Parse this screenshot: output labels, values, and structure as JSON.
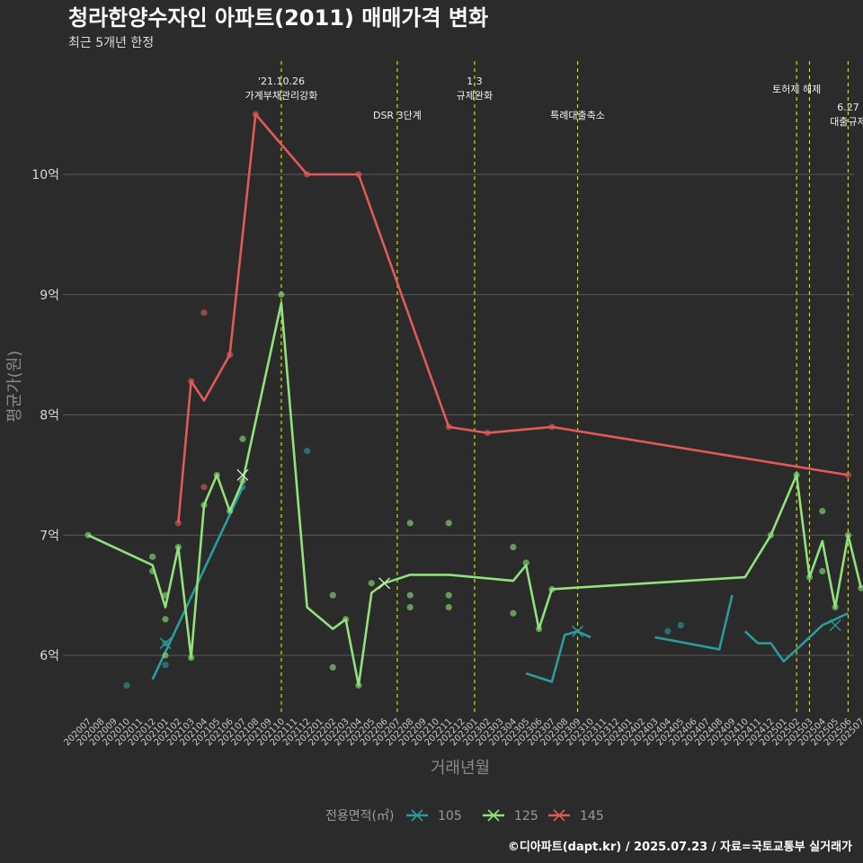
{
  "chart_data": {
    "type": "line",
    "title": "청라한양수자인 아파트(2011) 매매가격 변화",
    "subtitle": "최근 5개년 한정",
    "xlabel": "거래년월",
    "ylabel": "평균가(원)",
    "caption": "©디아파트(dapt.kr) / 2025.07.23 / 자료=국토교통부 실거래가",
    "legend_title": "전용면적(㎡)",
    "legend_position": "bottom",
    "grid": true,
    "ylim": [
      5.4,
      10.5
    ],
    "y_ticks": [
      {
        "value": 6,
        "label": "6억"
      },
      {
        "value": 7,
        "label": "7억"
      },
      {
        "value": 8,
        "label": "8억"
      },
      {
        "value": 9,
        "label": "9억"
      },
      {
        "value": 10,
        "label": "10억"
      }
    ],
    "x_categories": [
      "202007",
      "202008",
      "202009",
      "202010",
      "202011",
      "202012",
      "202101",
      "202102",
      "202103",
      "202104",
      "202105",
      "202106",
      "202107",
      "202108",
      "202109",
      "202110",
      "202111",
      "202112",
      "202201",
      "202202",
      "202203",
      "202204",
      "202205",
      "202206",
      "202207",
      "202208",
      "202209",
      "202210",
      "202211",
      "202212",
      "202301",
      "202302",
      "202303",
      "202304",
      "202305",
      "202306",
      "202307",
      "202308",
      "202309",
      "202310",
      "202311",
      "202312",
      "202401",
      "202402",
      "202403",
      "202404",
      "202405",
      "202406",
      "202407",
      "202408",
      "202409",
      "202410",
      "202411",
      "202412",
      "202501",
      "202502",
      "202503",
      "202504",
      "202505",
      "202506",
      "202507"
    ],
    "series": [
      {
        "name": "105",
        "color": "#2a9d9b",
        "line": [
          [
            "202012",
            5.8
          ],
          [
            "202107",
            7.4
          ]
        ],
        "line2": [
          [
            "202305",
            5.85
          ],
          [
            "202307",
            5.78
          ],
          [
            "202308",
            6.17
          ],
          [
            "202309",
            6.2
          ],
          [
            "202310",
            6.15
          ]
        ],
        "line3": [
          [
            "202403",
            6.15
          ],
          [
            "202408",
            6.05
          ],
          [
            "202409",
            6.5
          ]
        ],
        "line4": [
          [
            "202410",
            6.2
          ],
          [
            "202411",
            6.1
          ],
          [
            "202412",
            6.1
          ],
          [
            "202501",
            5.95
          ],
          [
            "202504",
            6.25
          ],
          [
            "202506",
            6.35
          ]
        ],
        "points": [
          [
            "202010",
            5.75
          ],
          [
            "202101",
            5.92
          ],
          [
            "202101",
            6.1
          ],
          [
            "202107",
            7.4
          ],
          [
            "202112",
            7.7
          ],
          [
            "202404",
            6.2
          ],
          [
            "202405",
            6.25
          ]
        ],
        "x_marks": [
          [
            "202101",
            6.1
          ],
          [
            "202309",
            6.2
          ],
          [
            "202505",
            6.25
          ]
        ]
      },
      {
        "name": "125",
        "color": "#90e27a",
        "line": [
          [
            "202007",
            7.0
          ],
          [
            "202012",
            6.75
          ],
          [
            "202101",
            6.4
          ],
          [
            "202102",
            6.9
          ],
          [
            "202103",
            5.98
          ],
          [
            "202104",
            7.25
          ],
          [
            "202105",
            7.5
          ],
          [
            "202106",
            7.2
          ],
          [
            "202107",
            7.45
          ],
          [
            "202110",
            8.93
          ],
          [
            "202112",
            6.4
          ],
          [
            "202202",
            6.22
          ],
          [
            "202203",
            6.3
          ],
          [
            "202204",
            5.75
          ],
          [
            "202205",
            6.52
          ],
          [
            "202206",
            6.6
          ],
          [
            "202208",
            6.67
          ],
          [
            "202211",
            6.67
          ],
          [
            "202304",
            6.62
          ],
          [
            "202305",
            6.75
          ],
          [
            "202306",
            6.22
          ],
          [
            "202307",
            6.55
          ],
          [
            "202410",
            6.65
          ],
          [
            "202412",
            7.0
          ],
          [
            "202502",
            7.5
          ],
          [
            "202503",
            6.65
          ],
          [
            "202504",
            6.95
          ],
          [
            "202505",
            6.4
          ],
          [
            "202506",
            7.0
          ],
          [
            "202507",
            6.56
          ]
        ],
        "points": [
          [
            "202007",
            7.0
          ],
          [
            "202012",
            6.82
          ],
          [
            "202012",
            6.7
          ],
          [
            "202101",
            6.5
          ],
          [
            "202101",
            6.3
          ],
          [
            "202101",
            6.0
          ],
          [
            "202102",
            6.9
          ],
          [
            "202103",
            5.98
          ],
          [
            "202104",
            7.25
          ],
          [
            "202105",
            7.5
          ],
          [
            "202106",
            7.2
          ],
          [
            "202107",
            7.8
          ],
          [
            "202107",
            7.45
          ],
          [
            "202110",
            9.0
          ],
          [
            "202202",
            6.5
          ],
          [
            "202202",
            5.9
          ],
          [
            "202203",
            6.3
          ],
          [
            "202204",
            5.75
          ],
          [
            "202205",
            6.6
          ],
          [
            "202208",
            7.1
          ],
          [
            "202208",
            6.5
          ],
          [
            "202208",
            6.4
          ],
          [
            "202211",
            7.1
          ],
          [
            "202211",
            6.5
          ],
          [
            "202211",
            6.4
          ],
          [
            "202304",
            6.9
          ],
          [
            "202304",
            6.35
          ],
          [
            "202305",
            6.77
          ],
          [
            "202306",
            6.22
          ],
          [
            "202307",
            6.55
          ],
          [
            "202412",
            7.0
          ],
          [
            "202502",
            7.5
          ],
          [
            "202503",
            6.65
          ],
          [
            "202504",
            7.2
          ],
          [
            "202504",
            6.7
          ],
          [
            "202505",
            6.4
          ],
          [
            "202506",
            7.0
          ],
          [
            "202507",
            6.56
          ]
        ],
        "x_marks": [
          [
            "202107",
            7.5
          ],
          [
            "202206",
            6.6
          ]
        ]
      },
      {
        "name": "145",
        "color": "#e05a5a",
        "line": [
          [
            "202102",
            7.1
          ],
          [
            "202103",
            8.28
          ],
          [
            "202104",
            8.12
          ],
          [
            "202106",
            8.5
          ],
          [
            "202108",
            10.5
          ],
          [
            "202112",
            10.0
          ],
          [
            "202204",
            10.0
          ],
          [
            "202211",
            7.9
          ],
          [
            "202302",
            7.85
          ],
          [
            "202307",
            7.9
          ],
          [
            "202506",
            7.5
          ]
        ],
        "points": [
          [
            "202102",
            7.1
          ],
          [
            "202103",
            8.28
          ],
          [
            "202104",
            8.85
          ],
          [
            "202104",
            7.4
          ],
          [
            "202106",
            8.5
          ],
          [
            "202108",
            10.5
          ],
          [
            "202112",
            10.0
          ],
          [
            "202204",
            10.0
          ],
          [
            "202211",
            7.9
          ],
          [
            "202302",
            7.85
          ],
          [
            "202307",
            7.9
          ],
          [
            "202506",
            7.5
          ]
        ],
        "x_marks": []
      }
    ],
    "annotations": [
      {
        "x": "202110",
        "lines": [
          "'21.10.26",
          "가계부채관리강화"
        ],
        "level": 0
      },
      {
        "x": "202207",
        "lines": [
          "DSR 3단계"
        ],
        "level": 2
      },
      {
        "x": "202301",
        "lines": [
          "1.3",
          "규제완화"
        ],
        "level": 0
      },
      {
        "x": "202309",
        "lines": [
          "특례대출축소"
        ],
        "level": 2
      },
      {
        "x": "202502",
        "lines": [
          "토허제 해제"
        ],
        "level": 1
      },
      {
        "x": "202503",
        "lines": [],
        "level": 1
      },
      {
        "x": "202506",
        "lines": [
          "6.27",
          "대출규제"
        ],
        "level": 3
      }
    ]
  }
}
